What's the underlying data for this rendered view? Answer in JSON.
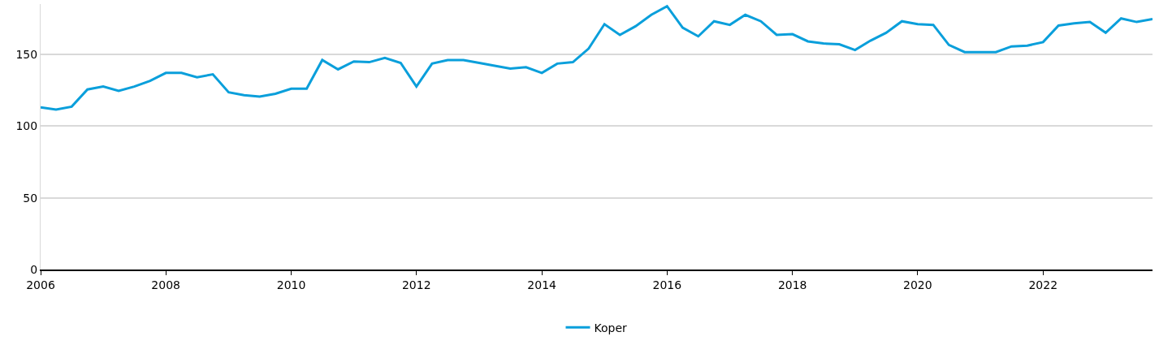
{
  "chart_data": {
    "type": "line",
    "x": [
      "2006-01",
      "2006-04",
      "2006-07",
      "2006-10",
      "2007-01",
      "2007-04",
      "2007-07",
      "2007-10",
      "2008-01",
      "2008-04",
      "2008-07",
      "2008-10",
      "2009-01",
      "2009-04",
      "2009-07",
      "2009-10",
      "2010-01",
      "2010-04",
      "2010-07",
      "2010-10",
      "2011-01",
      "2011-04",
      "2011-07",
      "2011-10",
      "2012-01",
      "2012-04",
      "2012-07",
      "2012-10",
      "2013-01",
      "2013-04",
      "2013-07",
      "2013-10",
      "2014-01",
      "2014-04",
      "2014-07",
      "2014-10",
      "2015-01",
      "2015-04",
      "2015-07",
      "2015-10",
      "2016-01",
      "2016-04",
      "2016-07",
      "2016-10",
      "2017-01",
      "2017-04",
      "2017-07",
      "2017-10",
      "2018-01",
      "2018-04",
      "2018-07",
      "2018-10",
      "2019-01",
      "2019-04",
      "2019-07",
      "2019-10",
      "2020-01",
      "2020-04",
      "2020-07",
      "2020-10",
      "2021-01",
      "2021-04",
      "2021-07",
      "2021-10",
      "2022-01",
      "2022-04",
      "2022-07",
      "2022-10",
      "2023-01",
      "2023-04",
      "2023-07",
      "2023-10"
    ],
    "series": [
      {
        "name": "Koper",
        "color": "#0a9fdb",
        "values": [
          113,
          111.5,
          113.5,
          125.5,
          127.5,
          124.5,
          127.5,
          131.5,
          137,
          137,
          134,
          136,
          123.5,
          121.5,
          120.5,
          122.5,
          126,
          126,
          146,
          139.5,
          145,
          144.5,
          147.5,
          144,
          127.5,
          143.5,
          146,
          146,
          144,
          142,
          140,
          141,
          137,
          143.5,
          144.5,
          154,
          171,
          163.5,
          169.5,
          177.5,
          183.5,
          168.5,
          162.5,
          173,
          170.5,
          177.5,
          173,
          163.5,
          164,
          159,
          157.5,
          157,
          153,
          159.5,
          165,
          173,
          171,
          170.5,
          156.5,
          151.5,
          151.5,
          151.5,
          155.5,
          156,
          158.5,
          170,
          171.5,
          172.5,
          165,
          175,
          172.5,
          174.5
        ]
      }
    ],
    "xlim": [
      "2006-01",
      "2023-10"
    ],
    "xticks": [
      "2006",
      "2008",
      "2010",
      "2012",
      "2014",
      "2016",
      "2018",
      "2020",
      "2022"
    ],
    "ylim": [
      0,
      185
    ],
    "yticks": [
      0,
      50,
      100,
      150
    ],
    "grid": "y",
    "legend": "bottom",
    "marker": "none",
    "line_style": "solid"
  }
}
